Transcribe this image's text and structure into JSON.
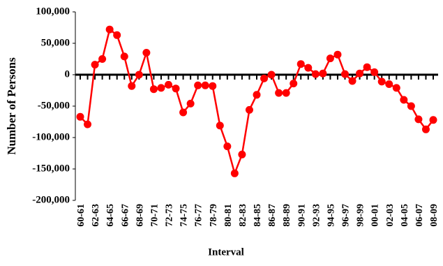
{
  "chart_data": {
    "type": "line",
    "x_label": "Interval",
    "y_label": "Number of Persons",
    "categories": [
      "60-61",
      null,
      "62-63",
      null,
      "64-65",
      null,
      "66-67",
      null,
      "68-69",
      null,
      "70-71",
      null,
      "72-73",
      null,
      "74-75",
      null,
      "76-77",
      null,
      "78-79",
      null,
      "80-81",
      null,
      "82-83",
      null,
      "84-85",
      null,
      "86-87",
      null,
      "88-89",
      null,
      "90-91",
      null,
      "92-93",
      null,
      "94-95",
      null,
      "96-97",
      null,
      "98-99",
      null,
      "00-01",
      null,
      "02-03",
      null,
      "04-05",
      null,
      "06-07",
      null,
      "08-09"
    ],
    "series": [
      {
        "name": "Number of Persons",
        "color": "#ff0000",
        "values": [
          -67000,
          -79000,
          16000,
          25000,
          72000,
          63000,
          29000,
          -18000,
          0,
          35000,
          -23000,
          -21000,
          -16000,
          -22000,
          -60000,
          -46000,
          -17000,
          -17000,
          -18000,
          -81000,
          -114000,
          -157000,
          -127000,
          -56000,
          -32000,
          -6000,
          0,
          -29000,
          -29000,
          -14000,
          17000,
          11000,
          1000,
          2000,
          26000,
          32000,
          1000,
          -10000,
          2000,
          12000,
          4000,
          -11000,
          -15000,
          -21000,
          -40000,
          -50000,
          -71000,
          -87000,
          -72000
        ]
      }
    ],
    "ylim": [
      -200000,
      100000
    ],
    "yticks": [
      {
        "value": -200000,
        "label": "-200,000"
      },
      {
        "value": -150000,
        "label": "-150,000"
      },
      {
        "value": -100000,
        "label": "-100,000"
      },
      {
        "value": -50000,
        "label": "-50,000"
      },
      0,
      {
        "value": 50000,
        "label": "50,000"
      },
      {
        "value": 100000,
        "label": "100,000"
      }
    ],
    "grid": false
  }
}
